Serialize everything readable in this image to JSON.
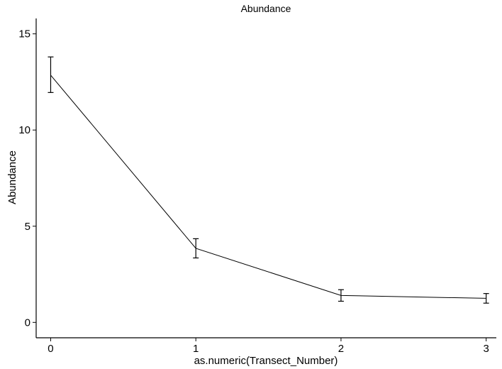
{
  "chart_data": {
    "type": "line",
    "title": "Abundance",
    "xlabel": "as.numeric(Transect_Number)",
    "ylabel": "Abundance",
    "x": [
      0,
      1,
      2,
      3
    ],
    "y": [
      12.85,
      3.85,
      1.4,
      1.25
    ],
    "error_low": [
      11.95,
      3.35,
      1.1,
      1.0
    ],
    "error_high": [
      13.8,
      4.35,
      1.7,
      1.5
    ],
    "xlim": [
      -0.1,
      3.07
    ],
    "ylim": [
      -0.8,
      15.8
    ],
    "xticks": [
      0,
      1,
      2,
      3
    ],
    "yticks": [
      0,
      5,
      10,
      15
    ],
    "grid": false,
    "legend": "none",
    "line_color": "#000000"
  }
}
